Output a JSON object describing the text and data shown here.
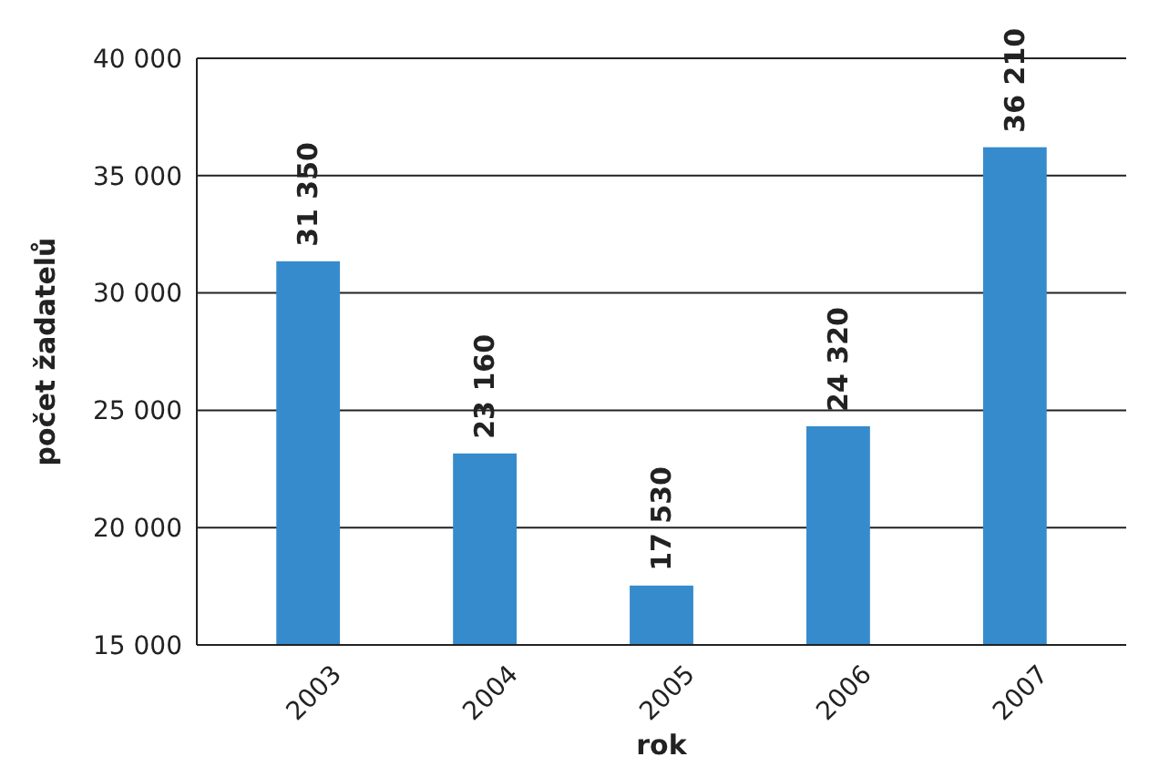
{
  "chart_data": {
    "type": "bar",
    "xlabel": "rok",
    "ylabel": "počet žadatelů",
    "categories": [
      "2003",
      "2004",
      "2005",
      "2006",
      "2007"
    ],
    "values": [
      31350,
      23160,
      17530,
      24320,
      36210
    ],
    "value_labels": [
      "31 350",
      "23 160",
      "17 530",
      "24 320",
      "36 210"
    ],
    "color": "#368bcc",
    "ylim": [
      15000,
      40000
    ],
    "yticks": [
      {
        "value": 15000,
        "label": "15 000"
      },
      {
        "value": 20000,
        "label": "20 000"
      },
      {
        "value": 25000,
        "label": "25 000"
      },
      {
        "value": 30000,
        "label": "30 000"
      },
      {
        "value": 35000,
        "label": "35 000"
      },
      {
        "value": 40000,
        "label": "40 000"
      }
    ],
    "grid": "y"
  }
}
